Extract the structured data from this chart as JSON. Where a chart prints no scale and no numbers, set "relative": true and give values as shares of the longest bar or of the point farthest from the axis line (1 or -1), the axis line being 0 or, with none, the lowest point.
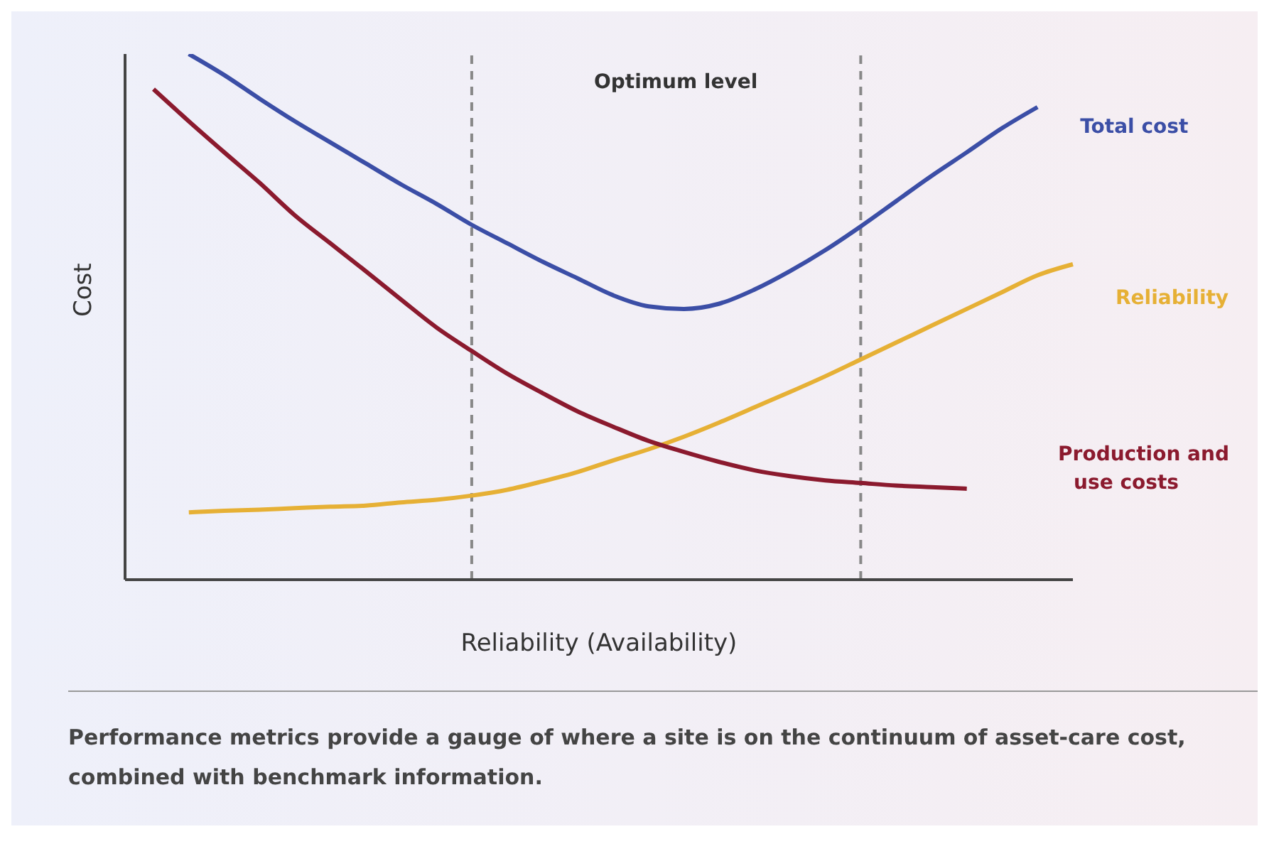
{
  "chart_data": {
    "type": "line",
    "relative": true,
    "xlabel": "Reliability (Availability)",
    "ylabel": "Cost",
    "categories": [
      null,
      null,
      null,
      null,
      null,
      null,
      null,
      null,
      null,
      null,
      null,
      null,
      null,
      null,
      null,
      null,
      null,
      null,
      null,
      null,
      null,
      null,
      null,
      null,
      null,
      null,
      null
    ],
    "series": [
      {
        "name": "Total cost",
        "color": "#3b4ea6",
        "values": [
          null,
          1.0,
          0.96,
          0.915,
          0.872,
          0.832,
          0.792,
          0.752,
          0.715,
          0.675,
          0.64,
          0.605,
          0.573,
          0.541,
          0.52,
          0.515,
          0.525,
          0.552,
          0.587,
          0.627,
          0.672,
          0.72,
          0.768,
          0.813,
          0.859,
          0.899,
          null
        ]
      },
      {
        "name": "Reliability",
        "color": "#e6b035",
        "values": [
          null,
          0.128,
          0.131,
          0.133,
          0.136,
          0.139,
          0.141,
          0.147,
          0.152,
          0.16,
          0.171,
          0.187,
          0.205,
          0.227,
          0.248,
          0.272,
          0.299,
          0.328,
          0.357,
          0.387,
          0.419,
          0.451,
          0.483,
          0.515,
          0.547,
          0.579,
          0.6
        ]
      },
      {
        "name": "Production and use costs",
        "color": "#8b1a2e",
        "values": [
          0.933,
          0.872,
          0.813,
          0.755,
          0.693,
          0.64,
          0.587,
          0.533,
          0.48,
          0.435,
          0.392,
          0.355,
          0.32,
          0.291,
          0.264,
          0.243,
          0.224,
          0.208,
          0.197,
          0.189,
          0.184,
          0.179,
          0.176,
          0.173,
          null,
          null,
          null
        ]
      }
    ],
    "annotations": [
      "Optimum level",
      "Performance metrics provide a gauge of where a site is on the continuum of asset-care cost, combined with benchmark information."
    ],
    "marker": "none",
    "line_style": "solid"
  }
}
